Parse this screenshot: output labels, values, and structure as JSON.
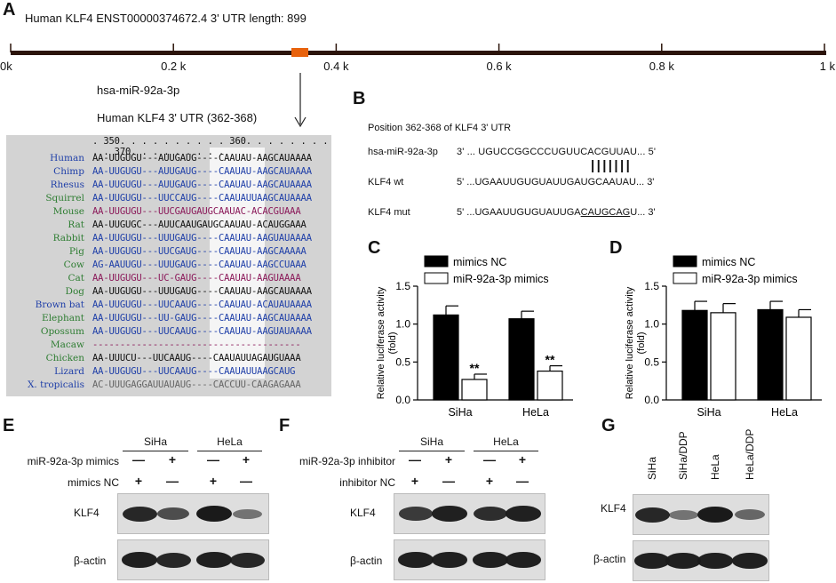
{
  "panelA": {
    "label": "A",
    "header": "Human KLF4   ENST00000374672.4   3' UTR length: 899",
    "ticks": [
      "0k",
      "0.2 k",
      "0.4 k",
      "0.6 k",
      "0.8 k",
      "1 k"
    ],
    "mirna": "hsa-miR-92a-3p",
    "site": "Human KLF4 3' UTR (362-368)",
    "ruler": ". 350. . . . . . . . . . 360. . . . . . . . . . 370. . . . . . . . .",
    "rows": [
      {
        "name": "Human",
        "seq": "AA-UUGUGU---AUUGAUG----CAAUAU-AAGCAUAAAA",
        "color": "#1f3fa8",
        "seqcolor": "#111111"
      },
      {
        "name": "Chimp",
        "seq": "AA-UUGUGU---AUUGAUG----CAAUAU-AAGCAUAAAA",
        "color": "#1f3fa8",
        "seqcolor": "#1f3fa8"
      },
      {
        "name": "Rhesus",
        "seq": "AA-UUGUGU---AUUGAUG----CAAUAU-AAGCAUAAAA",
        "color": "#1f3fa8",
        "seqcolor": "#1f3fa8"
      },
      {
        "name": "Squirrel",
        "seq": "AA-UUGUGU---UUCCAUG----CAAUAUUAAGCAUAAAA",
        "color": "#2e7d32",
        "seqcolor": "#1f3fa8"
      },
      {
        "name": "Mouse",
        "seq": "AA-UUGUGU---UUCGAUGAUGCAAUAC-ACACGUAAA",
        "color": "#2e7d32",
        "seqcolor": "#8b1a5a"
      },
      {
        "name": "Rat",
        "seq": "AA-UUGUGC---AUUCAAUGAUGCAAUAU-ACAUGGAAA",
        "color": "#2e7d32",
        "seqcolor": "#111111"
      },
      {
        "name": "Rabbit",
        "seq": "AA-UUGUGU---UUUGAUG----CAAUAU-AAGUAUAAAA",
        "color": "#2e7d32",
        "seqcolor": "#1f3fa8"
      },
      {
        "name": "Pig",
        "seq": "AA-UUGUGU---UUCGAUG----CAAUAU-AAGCAAAAA",
        "color": "#2e7d32",
        "seqcolor": "#1f3fa8"
      },
      {
        "name": "Cow",
        "seq": "AG-AAUUGU---UUUGAUG----CAAUAU-AAGCCUAAA",
        "color": "#2e7d32",
        "seqcolor": "#1f3fa8"
      },
      {
        "name": "Cat",
        "seq": "AA-UUGUGU---UC-GAUG----CAAUAU-AAGUAAAA",
        "color": "#2e7d32",
        "seqcolor": "#8b1a5a"
      },
      {
        "name": "Dog",
        "seq": "AA-UUGUGU---UUUGAUG----CAAUAU-AAGCAUAAAA",
        "color": "#2e7d32",
        "seqcolor": "#111111"
      },
      {
        "name": "Brown bat",
        "seq": "AA-UUGUGU---UUCAAUG----CAAUAU-ACAUAUAAAA",
        "color": "#1f3fa8",
        "seqcolor": "#1f3fa8"
      },
      {
        "name": "Elephant",
        "seq": "AA-UUGUGU---UU-GAUG----CAAUAU-AAGCAUAAAA",
        "color": "#2e7d32",
        "seqcolor": "#1f3fa8"
      },
      {
        "name": "Opossum",
        "seq": "AA-UUGUGU---UUCAAUG----CAAUAU-AAGUAUAAAA",
        "color": "#2e7d32",
        "seqcolor": "#1f3fa8"
      },
      {
        "name": "Macaw",
        "seq": "--------------------------------------",
        "color": "#2e7d32",
        "seqcolor": "#8b1a5a"
      },
      {
        "name": "Chicken",
        "seq": "AA-UUUCU---UUCAAUG----CAAUAUUAGAUGUAAA",
        "color": "#2e7d32",
        "seqcolor": "#111111"
      },
      {
        "name": "Lizard",
        "seq": "AA-UUGUGU---UUCAAUG----CAAUAUUAAGCAUG",
        "color": "#1f3fa8",
        "seqcolor": "#1f3fa8"
      },
      {
        "name": "X. tropicalis",
        "seq": "AC-UUUGAGGAUUAUAUG----CACCUU-CAAGAGAAA",
        "color": "#1f3fa8",
        "seqcolor": "#666666"
      }
    ]
  },
  "panelB": {
    "label": "B",
    "title": "Position 362-368 of KLF4 3' UTR",
    "mirna_name": "hsa-miR-92a-3p",
    "mirna_seq": "3' ... UGUCCGGCCCUGUUCACGUUAU... 5'",
    "pairs": "|||||||",
    "wt_name": "KLF4 wt",
    "wt_seq": "5' ...UGAAUUGUGUAUUGAUGCAAUAU... 3'",
    "mut_name": "KLF4 mut",
    "mut_seq_prefix": "5' ...UGAAUUGUGUAUUGA",
    "mut_seq_site": "CAUGCAG",
    "mut_seq_suffix": "U... 3'"
  },
  "chart_data": [
    {
      "panel": "C",
      "type": "bar",
      "categories": [
        "SiHa",
        "HeLa"
      ],
      "series": [
        {
          "name": "mimics NC",
          "values": [
            1.12,
            1.07
          ],
          "errors": [
            0.12,
            0.1
          ],
          "color": "#000000"
        },
        {
          "name": "miR-92a-3p mimics",
          "values": [
            0.27,
            0.38
          ],
          "errors": [
            0.07,
            0.07
          ],
          "color": "#ffffff"
        }
      ],
      "annotations": [
        "**",
        "**"
      ],
      "ylabel": "Relative luciferase activity",
      "ylabel2": "(fold)",
      "yticks": [
        "0.0",
        "0.5",
        "1.0",
        "1.5"
      ],
      "ylim": [
        0,
        1.5
      ]
    },
    {
      "panel": "D",
      "type": "bar",
      "categories": [
        "SiHa",
        "HeLa"
      ],
      "series": [
        {
          "name": "mimics NC",
          "values": [
            1.18,
            1.19
          ],
          "errors": [
            0.12,
            0.11
          ],
          "color": "#000000"
        },
        {
          "name": "miR-92a-3p mimics",
          "values": [
            1.15,
            1.09
          ],
          "errors": [
            0.12,
            0.1
          ],
          "color": "#ffffff"
        }
      ],
      "ylabel": "Relative luciferase activity",
      "ylabel2": "(fold)",
      "yticks": [
        "0.0",
        "0.5",
        "1.0",
        "1.5"
      ],
      "ylim": [
        0,
        1.5
      ]
    }
  ],
  "panelE": {
    "label": "E",
    "cells": [
      "SiHa",
      "HeLa"
    ],
    "row1_label": "miR-92a-3p mimics",
    "row1_signs": [
      "—",
      "+",
      "—",
      "+"
    ],
    "row2_label": "mimics NC",
    "row2_signs": [
      "+",
      "—",
      "+",
      "—"
    ],
    "blot1": "KLF4",
    "blot2": "β-actin",
    "klf4_intensity": [
      0.9,
      0.6,
      1.0,
      0.3
    ],
    "actin_intensity": [
      0.95,
      0.9,
      0.95,
      0.9
    ]
  },
  "panelF": {
    "label": "F",
    "cells": [
      "SiHa",
      "HeLa"
    ],
    "row1_label": "miR-92a-3p inhibitor",
    "row1_signs": [
      "—",
      "+",
      "—",
      "+"
    ],
    "row2_label": "inhibitor NC",
    "row2_signs": [
      "+",
      "—",
      "+",
      "—"
    ],
    "blot1": "KLF4",
    "blot2": "β-actin",
    "klf4_intensity": [
      0.75,
      0.95,
      0.85,
      0.95
    ],
    "actin_intensity": [
      0.95,
      0.95,
      0.95,
      0.95
    ]
  },
  "panelG": {
    "label": "G",
    "lanes": [
      "SiHa",
      "SiHa/DDP",
      "HeLa",
      "HeLa/DDP"
    ],
    "blot1": "KLF4",
    "blot2": "β-actin",
    "klf4_intensity": [
      0.9,
      0.3,
      1.0,
      0.4
    ],
    "actin_intensity": [
      0.95,
      0.95,
      0.95,
      0.95
    ]
  },
  "colors": {
    "scale_bar": "#2b140a",
    "site_marker": "#e8620c"
  }
}
